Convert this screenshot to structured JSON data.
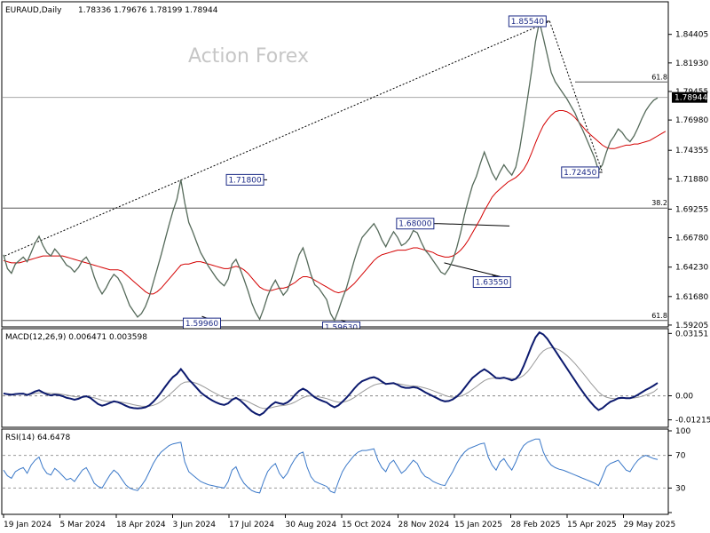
{
  "header": {
    "symbol_text": "EURAUD,Daily",
    "ohlc_text": "1.78336 1.79676 1.78199 1.78944"
  },
  "watermark": "Action Forex",
  "chart_data": [
    {
      "type": "line",
      "panel": "price",
      "title": "EURAUD,Daily",
      "y_range": [
        1.592,
        1.87
      ],
      "y_ticks": [
        "1.84405",
        "1.81930",
        "1.79455",
        "1.76980",
        "1.74355",
        "1.71880",
        "1.69255",
        "1.66780",
        "1.64230",
        "1.61680",
        "1.59205"
      ],
      "current_price": "1.78944",
      "x_ticks": [
        "19 Jan 2024",
        "5 Mar 2024",
        "18 Apr 2024",
        "3 Jun 2024",
        "17 Jul 2024",
        "30 Aug 2024",
        "15 Oct 2024",
        "28 Nov 2024",
        "15 Jan 2025",
        "28 Feb 2025",
        "15 Apr 2025",
        "29 May 2025"
      ],
      "annotations": [
        {
          "label": "1.85540",
          "value": 1.8554,
          "date": "2025-03-18"
        },
        {
          "label": "1.71800",
          "value": 1.718,
          "date": "2024-08-05"
        },
        {
          "label": "1.68000",
          "value": 1.68,
          "date": "2024-12-20"
        },
        {
          "label": "1.72450",
          "value": 1.7245,
          "date": "2025-04-29"
        },
        {
          "label": "1.63550",
          "value": 1.6355,
          "date": "2025-01-31"
        },
        {
          "label": "1.59960",
          "value": 1.5996,
          "date": "2024-06-14"
        },
        {
          "label": "1.59630",
          "value": 1.5963,
          "date": "2024-10-03"
        }
      ],
      "fib_levels": [
        {
          "label": "61.8",
          "value": 1.8028
        },
        {
          "label": "38.2",
          "value": 1.6935
        },
        {
          "label": "61.8",
          "value": 1.596
        }
      ],
      "horizontal_line": 1.7894,
      "series": [
        {
          "values": [
            1.653,
            1.641,
            1.637,
            1.645,
            1.648,
            1.651,
            1.647,
            1.655,
            1.663,
            1.669,
            1.661,
            1.655,
            1.652,
            1.658,
            1.654,
            1.649,
            1.644,
            1.642,
            1.638,
            1.642,
            1.648,
            1.651,
            1.645,
            1.634,
            1.625,
            1.619,
            1.624,
            1.631,
            1.636,
            1.633,
            1.627,
            1.618,
            1.609,
            1.604,
            1.599,
            1.602,
            1.608,
            1.617,
            1.629,
            1.641,
            1.653,
            1.666,
            1.679,
            1.691,
            1.701,
            1.718,
            1.698,
            1.681,
            1.673,
            1.664,
            1.655,
            1.649,
            1.643,
            1.638,
            1.633,
            1.629,
            1.626,
            1.632,
            1.645,
            1.649,
            1.641,
            1.632,
            1.622,
            1.611,
            1.603,
            1.597,
            1.606,
            1.617,
            1.625,
            1.631,
            1.624,
            1.618,
            1.622,
            1.631,
            1.642,
            1.653,
            1.659,
            1.648,
            1.636,
            1.627,
            1.624,
            1.619,
            1.614,
            1.602,
            1.596,
            1.605,
            1.615,
            1.624,
            1.636,
            1.648,
            1.659,
            1.668,
            1.672,
            1.676,
            1.68,
            1.674,
            1.666,
            1.66,
            1.667,
            1.673,
            1.668,
            1.661,
            1.663,
            1.667,
            1.674,
            1.672,
            1.664,
            1.657,
            1.653,
            1.648,
            1.643,
            1.638,
            1.636,
            1.641,
            1.648,
            1.659,
            1.672,
            1.688,
            1.701,
            1.713,
            1.721,
            1.732,
            1.742,
            1.733,
            1.724,
            1.718,
            1.725,
            1.731,
            1.726,
            1.722,
            1.729,
            1.745,
            1.766,
            1.789,
            1.812,
            1.838,
            1.855,
            1.841,
            1.826,
            1.811,
            1.803,
            1.798,
            1.793,
            1.788,
            1.782,
            1.776,
            1.768,
            1.761,
            1.753,
            1.745,
            1.737,
            1.726,
            1.731,
            1.742,
            1.751,
            1.756,
            1.762,
            1.759,
            1.754,
            1.751,
            1.756,
            1.763,
            1.771,
            1.778,
            1.783,
            1.787,
            1.789
          ]
        },
        {
          "values": [
            1.648,
            1.647,
            1.646,
            1.646,
            1.646,
            1.647,
            1.648,
            1.649,
            1.65,
            1.651,
            1.652,
            1.652,
            1.652,
            1.652,
            1.652,
            1.652,
            1.651,
            1.65,
            1.649,
            1.648,
            1.647,
            1.646,
            1.645,
            1.644,
            1.643,
            1.642,
            1.641,
            1.64,
            1.64,
            1.64,
            1.639,
            1.636,
            1.633,
            1.63,
            1.627,
            1.624,
            1.621,
            1.619,
            1.619,
            1.621,
            1.624,
            1.628,
            1.632,
            1.636,
            1.64,
            1.644,
            1.645,
            1.645,
            1.646,
            1.647,
            1.647,
            1.646,
            1.645,
            1.644,
            1.643,
            1.642,
            1.641,
            1.641,
            1.642,
            1.643,
            1.642,
            1.64,
            1.637,
            1.633,
            1.629,
            1.625,
            1.623,
            1.622,
            1.622,
            1.623,
            1.624,
            1.624,
            1.625,
            1.627,
            1.629,
            1.632,
            1.634,
            1.634,
            1.633,
            1.631,
            1.629,
            1.627,
            1.625,
            1.623,
            1.621,
            1.62,
            1.621,
            1.622,
            1.625,
            1.628,
            1.632,
            1.636,
            1.64,
            1.644,
            1.648,
            1.651,
            1.653,
            1.654,
            1.655,
            1.656,
            1.657,
            1.657,
            1.657,
            1.658,
            1.659,
            1.659,
            1.658,
            1.657,
            1.656,
            1.655,
            1.653,
            1.652,
            1.651,
            1.651,
            1.652,
            1.654,
            1.657,
            1.661,
            1.666,
            1.672,
            1.678,
            1.684,
            1.691,
            1.697,
            1.703,
            1.707,
            1.71,
            1.713,
            1.716,
            1.718,
            1.72,
            1.723,
            1.727,
            1.733,
            1.741,
            1.75,
            1.758,
            1.765,
            1.77,
            1.774,
            1.777,
            1.778,
            1.778,
            1.777,
            1.775,
            1.772,
            1.768,
            1.764,
            1.76,
            1.757,
            1.754,
            1.751,
            1.748,
            1.746,
            1.745,
            1.745,
            1.746,
            1.747,
            1.748,
            1.748,
            1.749,
            1.749,
            1.75,
            1.751,
            1.752,
            1.754,
            1.756,
            1.758,
            1.76
          ]
        }
      ]
    },
    {
      "type": "line",
      "panel": "macd",
      "title": "MACD(12,26,9) 0.006471 0.003598",
      "y_range": [
        -0.015,
        0.033
      ],
      "y_ticks": [
        "0.03151",
        "0.00",
        "-0.01215"
      ],
      "series": [
        {
          "values": [
            0.0012,
            0.0008,
            0.0005,
            0.0009,
            0.001,
            0.0011,
            0.0004,
            0.0012,
            0.0022,
            0.0028,
            0.0017,
            0.0008,
            0.0002,
            0.0006,
            0.0004,
            -0.0002,
            -0.001,
            -0.0014,
            -0.002,
            -0.0015,
            -0.0006,
            -0.0002,
            -0.001,
            -0.0026,
            -0.0042,
            -0.005,
            -0.0044,
            -0.0035,
            -0.0028,
            -0.0032,
            -0.004,
            -0.005,
            -0.0058,
            -0.0062,
            -0.0064,
            -0.0062,
            -0.0058,
            -0.0048,
            -0.003,
            -0.0008,
            0.0018,
            0.0045,
            0.0072,
            0.0095,
            0.011,
            0.0135,
            0.011,
            0.0082,
            0.0062,
            0.004,
            0.0018,
            0.0002,
            -0.0012,
            -0.0024,
            -0.0034,
            -0.0042,
            -0.0046,
            -0.0038,
            -0.002,
            -0.001,
            -0.0022,
            -0.004,
            -0.006,
            -0.0078,
            -0.009,
            -0.0098,
            -0.0086,
            -0.0064,
            -0.0046,
            -0.0032,
            -0.0038,
            -0.0042,
            -0.0034,
            -0.0018,
            0.0005,
            0.0025,
            0.0036,
            0.0026,
            0.0008,
            -0.0008,
            -0.0018,
            -0.0026,
            -0.0034,
            -0.0048,
            -0.0058,
            -0.0048,
            -0.003,
            -0.001,
            0.0012,
            0.0036,
            0.0058,
            0.0074,
            0.0082,
            0.009,
            0.0094,
            0.0086,
            0.0072,
            0.006,
            0.0062,
            0.0064,
            0.0056,
            0.0045,
            0.004,
            0.004,
            0.0044,
            0.004,
            0.003,
            0.0018,
            0.0008,
            -0.0002,
            -0.0012,
            -0.0022,
            -0.0028,
            -0.0026,
            -0.0018,
            -0.0004,
            0.0014,
            0.004,
            0.0066,
            0.009,
            0.0106,
            0.0122,
            0.0134,
            0.0122,
            0.0106,
            0.009,
            0.0088,
            0.0092,
            0.0086,
            0.0078,
            0.0086,
            0.0108,
            0.015,
            0.02,
            0.025,
            0.0295,
            0.032,
            0.031,
            0.0288,
            0.0258,
            0.0228,
            0.0198,
            0.0168,
            0.0138,
            0.0108,
            0.0078,
            0.0048,
            0.002,
            -0.0008,
            -0.0032,
            -0.0055,
            -0.0072,
            -0.0062,
            -0.0045,
            -0.003,
            -0.0022,
            -0.0012,
            -0.001,
            -0.0012,
            -0.0012,
            -0.0005,
            0.0005,
            0.0018,
            0.003,
            0.004,
            0.0052,
            0.0065
          ]
        },
        {
          "values": [
            0.001,
            0.001,
            0.0009,
            0.0009,
            0.0009,
            0.0009,
            0.0008,
            0.0009,
            0.0012,
            0.0015,
            0.0016,
            0.0014,
            0.0012,
            0.0011,
            0.001,
            0.0007,
            0.0004,
            0.0,
            -0.0004,
            -0.0006,
            -0.0006,
            -0.0005,
            -0.0006,
            -0.001,
            -0.0016,
            -0.0023,
            -0.0027,
            -0.0029,
            -0.0029,
            -0.003,
            -0.0032,
            -0.0036,
            -0.004,
            -0.0045,
            -0.0049,
            -0.0052,
            -0.0053,
            -0.0052,
            -0.0048,
            -0.004,
            -0.0028,
            -0.0013,
            0.0004,
            0.0022,
            0.004,
            0.0059,
            0.0069,
            0.0071,
            0.0069,
            0.0063,
            0.0054,
            0.0044,
            0.0032,
            0.0021,
            0.001,
            0.0,
            -0.0009,
            -0.0015,
            -0.0016,
            -0.0015,
            -0.0017,
            -0.0021,
            -0.0029,
            -0.0039,
            -0.0049,
            -0.0059,
            -0.0064,
            -0.0064,
            -0.006,
            -0.0055,
            -0.0051,
            -0.0049,
            -0.0046,
            -0.004,
            -0.0031,
            -0.002,
            -0.0009,
            -0.0002,
            0.0,
            -0.0002,
            -0.0005,
            -0.0009,
            -0.0014,
            -0.0021,
            -0.0028,
            -0.0032,
            -0.0032,
            -0.0028,
            -0.002,
            -0.0009,
            0.0005,
            0.0019,
            0.0032,
            0.0044,
            0.0054,
            0.006,
            0.0063,
            0.0062,
            0.0062,
            0.0062,
            0.0061,
            0.0058,
            0.0054,
            0.0051,
            0.005,
            0.0048,
            0.0044,
            0.0039,
            0.0033,
            0.0026,
            0.0018,
            0.001,
            0.0002,
            -0.0004,
            -0.0007,
            -0.0006,
            -0.0002,
            0.0006,
            0.0018,
            0.0032,
            0.0047,
            0.0062,
            0.0076,
            0.0085,
            0.0089,
            0.0089,
            0.0089,
            0.009,
            0.0089,
            0.0087,
            0.0087,
            0.0091,
            0.0103,
            0.0122,
            0.0148,
            0.0177,
            0.0206,
            0.0227,
            0.0239,
            0.0243,
            0.024,
            0.0232,
            0.0219,
            0.0203,
            0.0184,
            0.0163,
            0.014,
            0.0116,
            0.0091,
            0.0066,
            0.0042,
            0.0019,
            0.0003,
            -0.0007,
            -0.0012,
            -0.0014,
            -0.0014,
            -0.0013,
            -0.0013,
            -0.0013,
            -0.0011,
            -0.0008,
            -0.0003,
            0.0004,
            0.0011,
            0.002,
            0.0036
          ]
        }
      ]
    },
    {
      "type": "line",
      "panel": "rsi",
      "title": "RSI(14) 64.6478",
      "y_range": [
        0,
        100
      ],
      "y_ticks": [
        "100",
        "70",
        "30",
        "0"
      ],
      "levels": [
        70,
        30
      ],
      "series": [
        {
          "values": [
            52,
            45,
            42,
            50,
            53,
            55,
            48,
            58,
            64,
            68,
            55,
            48,
            46,
            54,
            50,
            45,
            40,
            42,
            38,
            45,
            52,
            55,
            46,
            36,
            32,
            30,
            38,
            46,
            52,
            48,
            41,
            34,
            30,
            28,
            27,
            33,
            40,
            50,
            60,
            68,
            74,
            78,
            82,
            84,
            85,
            86,
            62,
            50,
            46,
            42,
            38,
            36,
            34,
            33,
            32,
            31,
            30,
            38,
            52,
            56,
            44,
            36,
            31,
            27,
            25,
            24,
            38,
            50,
            56,
            60,
            48,
            42,
            48,
            58,
            66,
            72,
            74,
            56,
            44,
            38,
            36,
            34,
            32,
            26,
            24,
            38,
            50,
            58,
            64,
            70,
            74,
            76,
            76,
            77,
            78,
            64,
            55,
            50,
            60,
            64,
            56,
            48,
            52,
            58,
            64,
            60,
            50,
            44,
            42,
            38,
            36,
            34,
            33,
            42,
            50,
            60,
            68,
            74,
            78,
            80,
            82,
            84,
            85,
            68,
            58,
            52,
            62,
            66,
            58,
            52,
            62,
            74,
            82,
            86,
            88,
            90,
            90,
            74,
            64,
            58,
            55,
            53,
            52,
            50,
            48,
            46,
            44,
            42,
            40,
            38,
            36,
            33,
            44,
            56,
            60,
            62,
            64,
            58,
            52,
            50,
            58,
            64,
            68,
            70,
            68,
            66,
            65
          ]
        }
      ]
    }
  ]
}
